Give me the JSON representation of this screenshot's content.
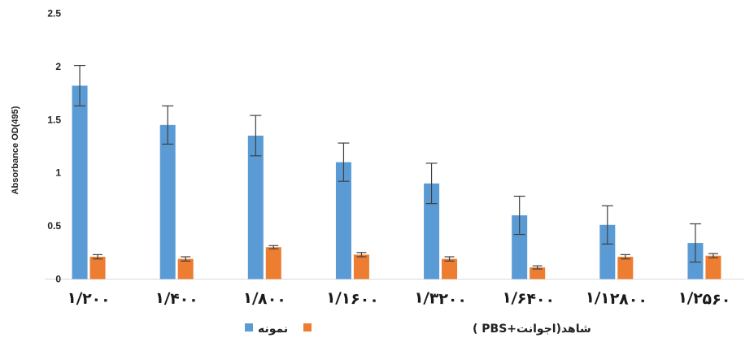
{
  "chart_data": {
    "type": "bar",
    "ylabel": "Absorbance OD(495)",
    "xlabel": "",
    "ylim": [
      0,
      2.5
    ],
    "yticks": [
      "0",
      "0.5",
      "1",
      "1.5",
      "2",
      "2.5"
    ],
    "ytick_values": [
      0,
      0.5,
      1,
      1.5,
      2,
      2.5
    ],
    "grid": false,
    "legend_position": "bottom-left",
    "categories": [
      "۱/۲۰۰",
      "۱/۴۰۰",
      "۱/۸۰۰",
      "۱/۱۶۰۰",
      "۱/۳۲۰۰",
      "۱/۶۴۰۰",
      "۱/۱۲۸۰۰",
      "۱/۲۵۶۰"
    ],
    "series": [
      {
        "name": "نمونه",
        "color": "#5B9BD5",
        "values": [
          1.82,
          1.45,
          1.35,
          1.1,
          0.9,
          0.6,
          0.51,
          0.34
        ],
        "errors": [
          0.19,
          0.18,
          0.19,
          0.18,
          0.19,
          0.18,
          0.18,
          0.18
        ]
      },
      {
        "name": "شاهد(اجوانت+PBS )",
        "color": "#ED7D31",
        "values": [
          0.21,
          0.19,
          0.3,
          0.23,
          0.19,
          0.11,
          0.21,
          0.22
        ],
        "errors": [
          0.02,
          0.02,
          0.015,
          0.02,
          0.02,
          0.015,
          0.02,
          0.02
        ]
      }
    ]
  }
}
